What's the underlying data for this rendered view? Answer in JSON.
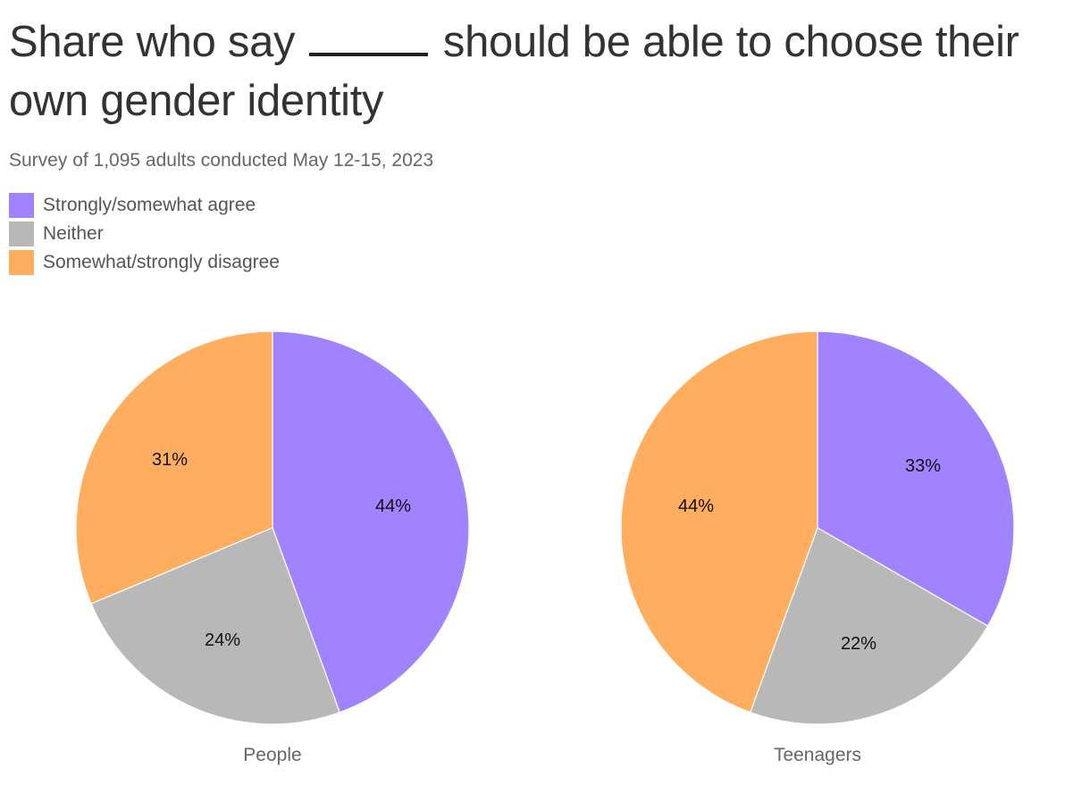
{
  "title_part1": "Share who say",
  "title_part2": "should be able to choose their own gender identity",
  "subtitle": "Survey of 1,095 adults conducted May 12-15, 2023",
  "legend": [
    {
      "label": "Strongly/somewhat agree",
      "color": "#a182ff"
    },
    {
      "label": "Neither",
      "color": "#b8b8b8"
    },
    {
      "label": "Somewhat/strongly disagree",
      "color": "#ffad5f"
    }
  ],
  "chart_data": [
    {
      "type": "pie",
      "name": "People",
      "slices": [
        {
          "label": "Strongly/somewhat agree",
          "value": 44,
          "display": "44%",
          "color": "#a182ff"
        },
        {
          "label": "Neither",
          "value": 24,
          "display": "24%",
          "color": "#b8b8b8"
        },
        {
          "label": "Somewhat/strongly disagree",
          "value": 31,
          "display": "31%",
          "color": "#ffad5f"
        }
      ]
    },
    {
      "type": "pie",
      "name": "Teenagers",
      "slices": [
        {
          "label": "Strongly/somewhat agree",
          "value": 33,
          "display": "33%",
          "color": "#a182ff"
        },
        {
          "label": "Neither",
          "value": 22,
          "display": "22%",
          "color": "#b8b8b8"
        },
        {
          "label": "Somewhat/strongly disagree",
          "value": 44,
          "display": "44%",
          "color": "#ffad5f"
        }
      ]
    }
  ]
}
